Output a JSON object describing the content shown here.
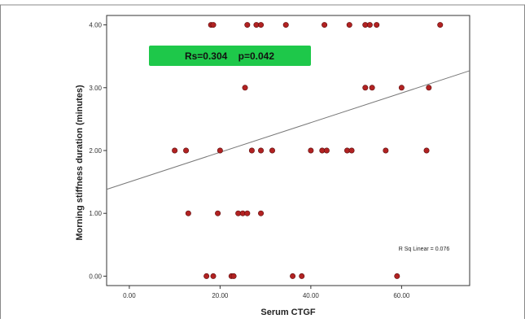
{
  "chart_data": {
    "type": "scatter",
    "xlabel": "Serum CTGF",
    "ylabel": "Morning stiffness duration (minutes)",
    "xlim": [
      -5,
      75
    ],
    "ylim": [
      -0.15,
      4.15
    ],
    "x_ticks": [
      0,
      20,
      40,
      60
    ],
    "x_tick_labels": [
      "0.00",
      "20.00",
      "40.00",
      "60.00"
    ],
    "y_ticks": [
      0,
      1,
      2,
      3,
      4
    ],
    "y_tick_labels": [
      "0.00",
      "1.00",
      "2.00",
      "3.00",
      "4.00"
    ],
    "grid": false,
    "points": [
      {
        "x": 18,
        "y": 4
      },
      {
        "x": 18.5,
        "y": 4
      },
      {
        "x": 26,
        "y": 4
      },
      {
        "x": 28,
        "y": 4
      },
      {
        "x": 29,
        "y": 4
      },
      {
        "x": 34.5,
        "y": 4
      },
      {
        "x": 43,
        "y": 4
      },
      {
        "x": 48.5,
        "y": 4
      },
      {
        "x": 52,
        "y": 4
      },
      {
        "x": 53,
        "y": 4
      },
      {
        "x": 54.5,
        "y": 4
      },
      {
        "x": 68.5,
        "y": 4
      },
      {
        "x": 25.5,
        "y": 3
      },
      {
        "x": 52,
        "y": 3
      },
      {
        "x": 53.5,
        "y": 3
      },
      {
        "x": 60,
        "y": 3
      },
      {
        "x": 66,
        "y": 3
      },
      {
        "x": 10,
        "y": 2
      },
      {
        "x": 12.5,
        "y": 2
      },
      {
        "x": 20,
        "y": 2
      },
      {
        "x": 27,
        "y": 2
      },
      {
        "x": 29,
        "y": 2
      },
      {
        "x": 31.5,
        "y": 2
      },
      {
        "x": 40,
        "y": 2
      },
      {
        "x": 42.5,
        "y": 2
      },
      {
        "x": 43.5,
        "y": 2
      },
      {
        "x": 48,
        "y": 2
      },
      {
        "x": 49,
        "y": 2
      },
      {
        "x": 56.5,
        "y": 2
      },
      {
        "x": 65.5,
        "y": 2
      },
      {
        "x": 13,
        "y": 1
      },
      {
        "x": 19.5,
        "y": 1
      },
      {
        "x": 24,
        "y": 1
      },
      {
        "x": 25,
        "y": 1
      },
      {
        "x": 26,
        "y": 1
      },
      {
        "x": 29,
        "y": 1
      },
      {
        "x": 17,
        "y": 0
      },
      {
        "x": 18.5,
        "y": 0
      },
      {
        "x": 22.5,
        "y": 0
      },
      {
        "x": 23,
        "y": 0
      },
      {
        "x": 36,
        "y": 0
      },
      {
        "x": 38,
        "y": 0
      },
      {
        "x": 59,
        "y": 0
      }
    ],
    "fit_line": {
      "intercept": 1.5,
      "slope": 0.0236
    },
    "annotation": "Rs=0.304    p=0.042",
    "r_sq_label": "R Sq Linear = 0.076",
    "marker_color": "#b22222",
    "annotation_bg": "#1ec84a"
  }
}
